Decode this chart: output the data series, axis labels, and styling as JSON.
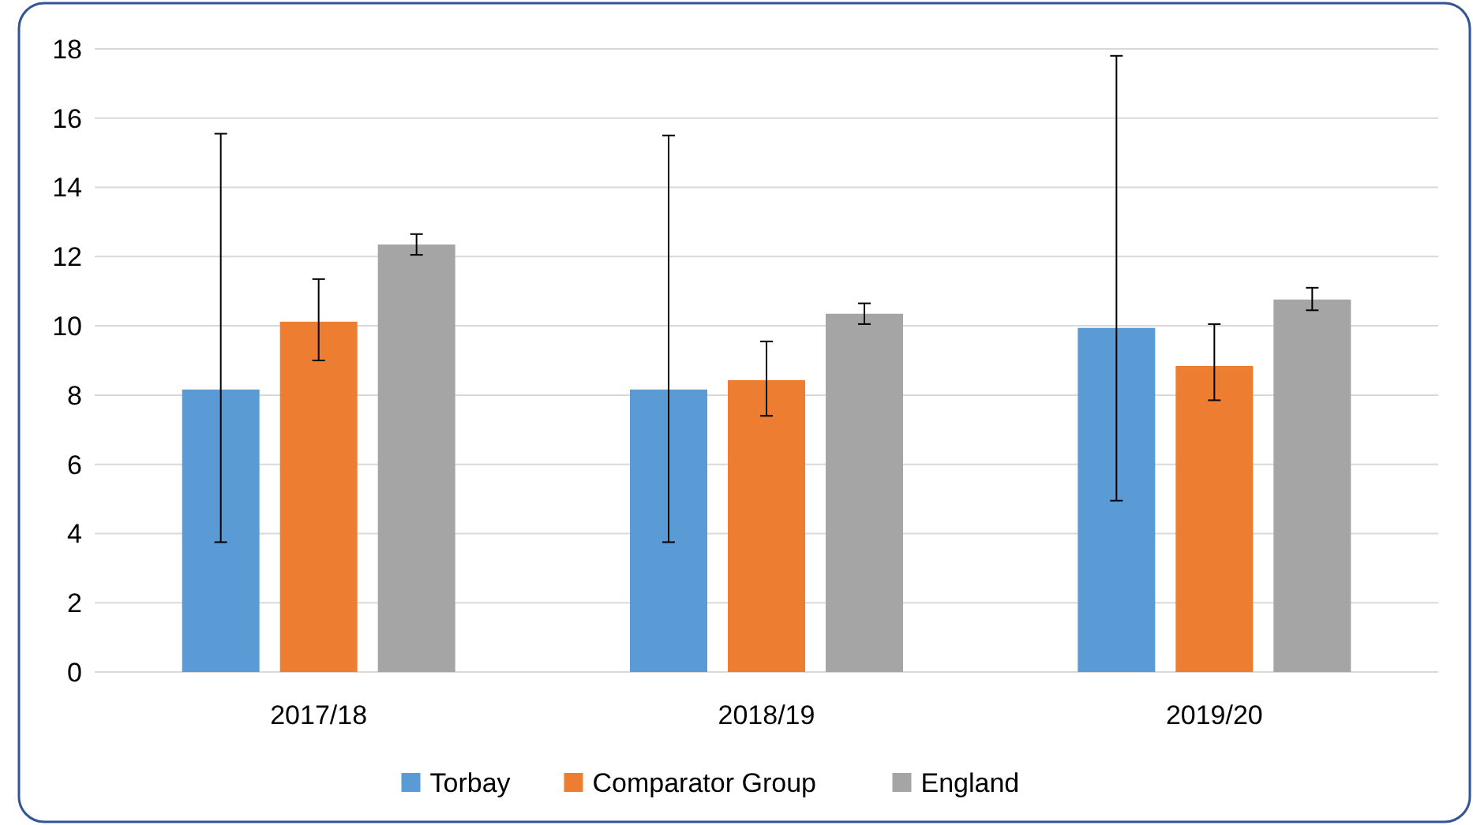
{
  "chart_data": {
    "type": "bar",
    "categories": [
      "2017/18",
      "2018/19",
      "2019/20"
    ],
    "series": [
      {
        "name": "Torbay",
        "color": "#5b9bd5",
        "values": [
          8.16,
          8.16,
          9.94
        ],
        "errors": [
          [
            3.75,
            15.55
          ],
          [
            3.75,
            15.5
          ],
          [
            4.95,
            17.8
          ]
        ]
      },
      {
        "name": "Comparator Group",
        "color": "#ed7d31",
        "values": [
          10.12,
          8.43,
          8.84
        ],
        "errors": [
          [
            9.0,
            11.35
          ],
          [
            7.4,
            9.55
          ],
          [
            7.85,
            10.05
          ]
        ]
      },
      {
        "name": "England",
        "color": "#a5a5a5",
        "values": [
          12.35,
          10.35,
          10.76
        ],
        "errors": [
          [
            12.05,
            12.65
          ],
          [
            10.05,
            10.65
          ],
          [
            10.45,
            11.1
          ]
        ]
      }
    ],
    "ylim": [
      0,
      18
    ],
    "yticks": [
      0,
      2,
      4,
      6,
      8,
      10,
      12,
      14,
      16,
      18
    ],
    "grid": "y",
    "legend": "bottom"
  }
}
